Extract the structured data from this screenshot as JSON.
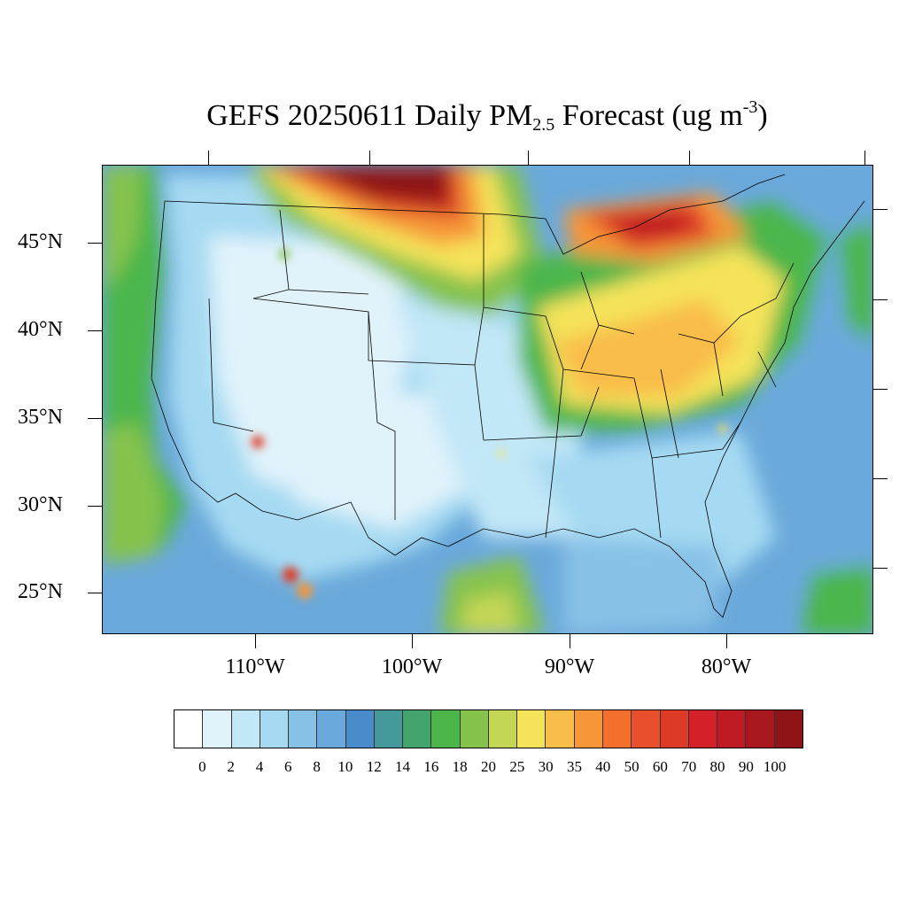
{
  "title": {
    "prefix": "GEFS 20250611 Daily PM",
    "subscript": "2.5",
    "middle": " Forecast (ug m",
    "superscript": "-3",
    "suffix": ")"
  },
  "map": {
    "lat_labels": [
      "45°N",
      "40°N",
      "35°N",
      "30°N",
      "25°N"
    ],
    "lon_labels": [
      "110°W",
      "100°W",
      "90°W",
      "80°W"
    ]
  },
  "colorbar": {
    "colors": [
      "#ffffff",
      "#e0f3fb",
      "#c2e7f7",
      "#a6daf2",
      "#88c1e6",
      "#6aa9db",
      "#4a8ccb",
      "#46999a",
      "#44a46d",
      "#4cb64b",
      "#86c34d",
      "#c4d654",
      "#f5e35a",
      "#f9bd4a",
      "#f69639",
      "#f2702c",
      "#e84f2c",
      "#de3a28",
      "#d42129",
      "#bf1b23",
      "#a8171d",
      "#8f1418"
    ],
    "labels": [
      "0",
      "2",
      "4",
      "6",
      "8",
      "10",
      "12",
      "14",
      "16",
      "18",
      "20",
      "25",
      "30",
      "35",
      "40",
      "50",
      "60",
      "70",
      "80",
      "90",
      "100"
    ]
  }
}
